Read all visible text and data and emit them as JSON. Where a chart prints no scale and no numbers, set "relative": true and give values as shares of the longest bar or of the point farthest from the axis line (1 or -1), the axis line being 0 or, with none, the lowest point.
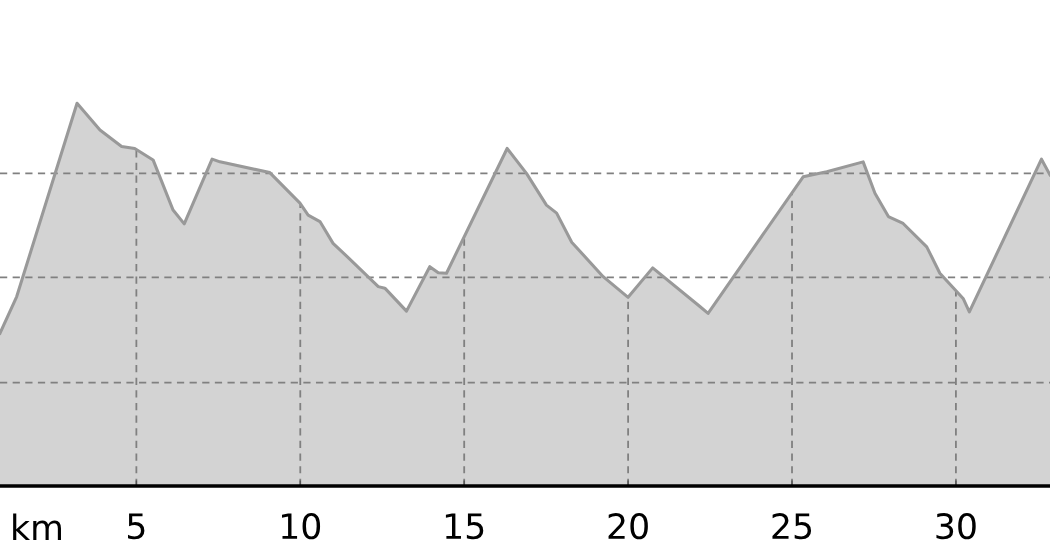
{
  "chart_data": {
    "type": "area",
    "relative": true,
    "xlabel": "km",
    "tick_labels": "x",
    "grid": "x",
    "xlim": [
      0.84,
      32.87
    ],
    "xticks": [
      5,
      10,
      15,
      20,
      25,
      30
    ],
    "x": [
      0.84,
      1.35,
      3.19,
      3.89,
      4.55,
      4.95,
      5.51,
      6.12,
      6.46,
      7.31,
      7.55,
      9.07,
      9.99,
      10.24,
      10.6,
      11.0,
      11.51,
      12.38,
      12.58,
      13.24,
      13.95,
      14.21,
      14.46,
      16.31,
      16.9,
      17.51,
      17.82,
      18.28,
      19.24,
      20.0,
      20.75,
      22.19,
      22.44,
      25.34,
      26.06,
      27.17,
      27.53,
      27.94,
      28.39,
      29.11,
      29.51,
      30.22,
      30.41,
      32.61,
      32.87
    ],
    "series": [
      {
        "color": "#999999",
        "values": [
          0.399,
          0.495,
          1.0,
          0.93,
          0.887,
          0.882,
          0.852,
          0.721,
          0.685,
          0.854,
          0.847,
          0.819,
          0.739,
          0.708,
          0.691,
          0.634,
          0.593,
          0.521,
          0.517,
          0.457,
          0.573,
          0.557,
          0.556,
          0.882,
          0.817,
          0.734,
          0.713,
          0.637,
          0.547,
          0.493,
          0.57,
          0.469,
          0.451,
          0.808,
          0.821,
          0.847,
          0.765,
          0.704,
          0.686,
          0.625,
          0.556,
          0.49,
          0.455,
          0.854,
          0.813
        ]
      }
    ],
    "ref_lines": [
      {
        "axis": "y",
        "value": 0.27,
        "color": "#808080",
        "line_style": "dashed"
      },
      {
        "axis": "y",
        "value": 0.545,
        "color": "#808080",
        "line_style": "dashed"
      },
      {
        "axis": "y",
        "value": 0.817,
        "color": "#808080",
        "line_style": "dashed"
      }
    ]
  }
}
